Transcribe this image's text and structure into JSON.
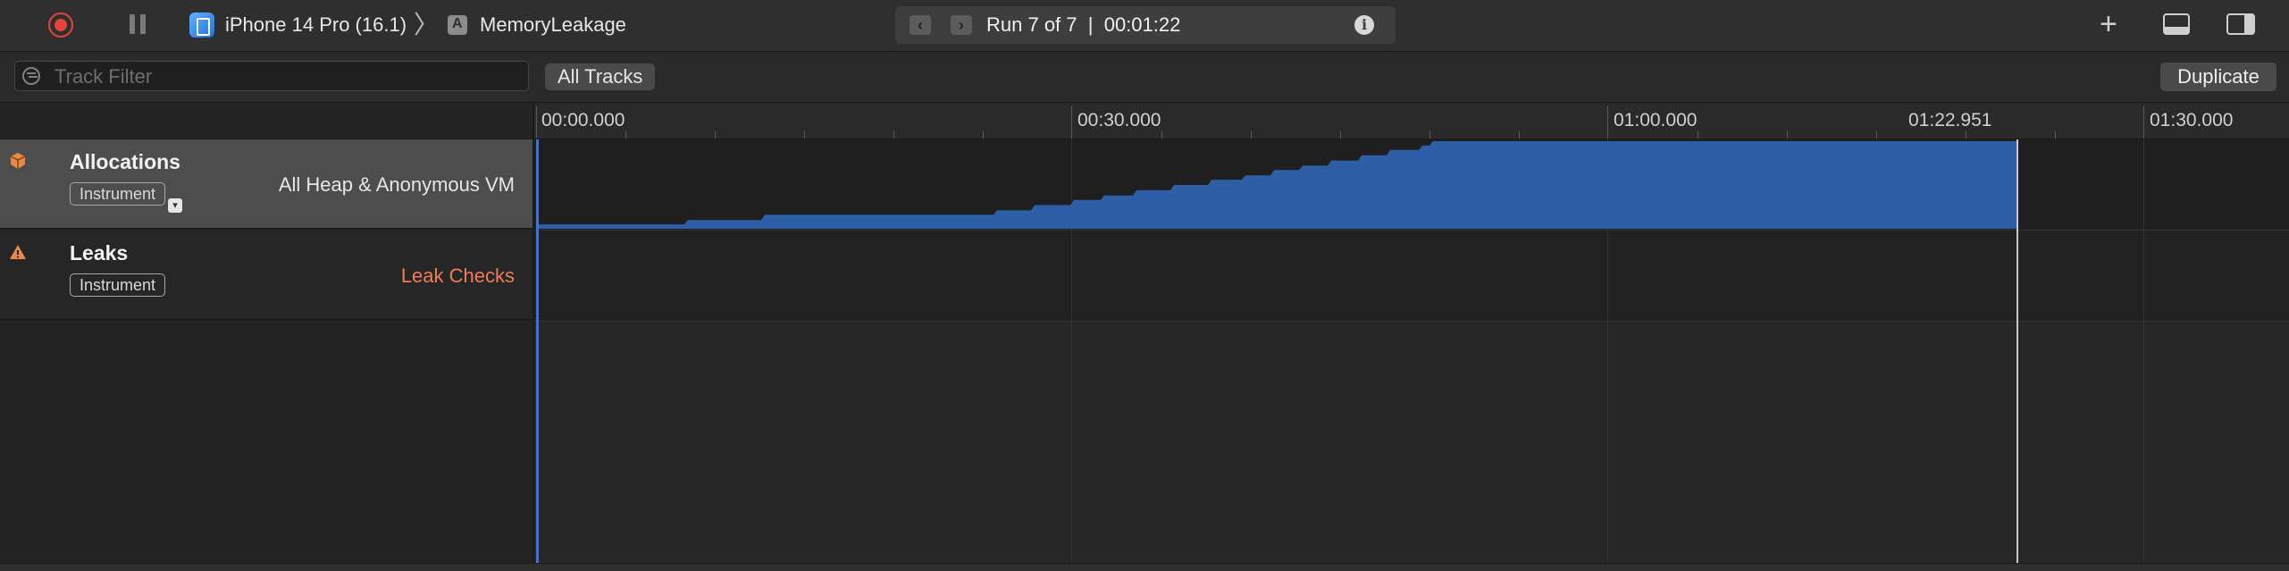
{
  "toolbar": {
    "device": "iPhone 14 Pro (16.1)",
    "separator": "〉",
    "target": "MemoryLeakage",
    "run": {
      "label": "Run 7 of 7",
      "divider": "|",
      "elapsed": "00:01:22"
    },
    "plus": "+",
    "accent_record": "#e0453e"
  },
  "filterbar": {
    "search_placeholder": "Track Filter",
    "all_tracks": "All Tracks",
    "duplicate": "Duplicate"
  },
  "ruler": {
    "labels": [
      "00:00.000",
      "00:30.000",
      "01:00.000",
      "01:22.951",
      "01:30.000"
    ]
  },
  "tracks": [
    {
      "name": "Allocations",
      "badge": "Instrument",
      "detail": "All Heap & Anonymous VM",
      "icon": "allocations-cube-icon",
      "color": "#e8894a"
    },
    {
      "name": "Leaks",
      "badge": "Instrument",
      "detail": "Leak Checks",
      "icon": "leaks-warning-icon",
      "color": "#ef7d57"
    }
  ],
  "chart_data": {
    "type": "area",
    "x_unit": "seconds",
    "xlim": [
      0,
      92
    ],
    "recording_end": 82.951,
    "series_color": "#2e5ea6",
    "points": [
      [
        0,
        0.05
      ],
      [
        8.3,
        0.05
      ],
      [
        8.5,
        0.1
      ],
      [
        12.6,
        0.1
      ],
      [
        12.8,
        0.16
      ],
      [
        25.6,
        0.16
      ],
      [
        25.8,
        0.21
      ],
      [
        27.7,
        0.21
      ],
      [
        27.9,
        0.27
      ],
      [
        29.9,
        0.27
      ],
      [
        30.1,
        0.33
      ],
      [
        31.6,
        0.33
      ],
      [
        31.8,
        0.38
      ],
      [
        33.4,
        0.38
      ],
      [
        33.6,
        0.44
      ],
      [
        35.5,
        0.44
      ],
      [
        35.7,
        0.5
      ],
      [
        37.6,
        0.5
      ],
      [
        37.8,
        0.56
      ],
      [
        39.5,
        0.56
      ],
      [
        39.7,
        0.61
      ],
      [
        41.1,
        0.61
      ],
      [
        41.3,
        0.67
      ],
      [
        42.7,
        0.67
      ],
      [
        42.9,
        0.72
      ],
      [
        44.3,
        0.72
      ],
      [
        44.5,
        0.78
      ],
      [
        46.0,
        0.78
      ],
      [
        46.2,
        0.84
      ],
      [
        47.6,
        0.84
      ],
      [
        47.8,
        0.9
      ],
      [
        49.4,
        0.9
      ],
      [
        49.6,
        0.95
      ],
      [
        50.0,
        0.95
      ],
      [
        50.2,
        1.0
      ],
      [
        82.951,
        1.0
      ]
    ]
  }
}
